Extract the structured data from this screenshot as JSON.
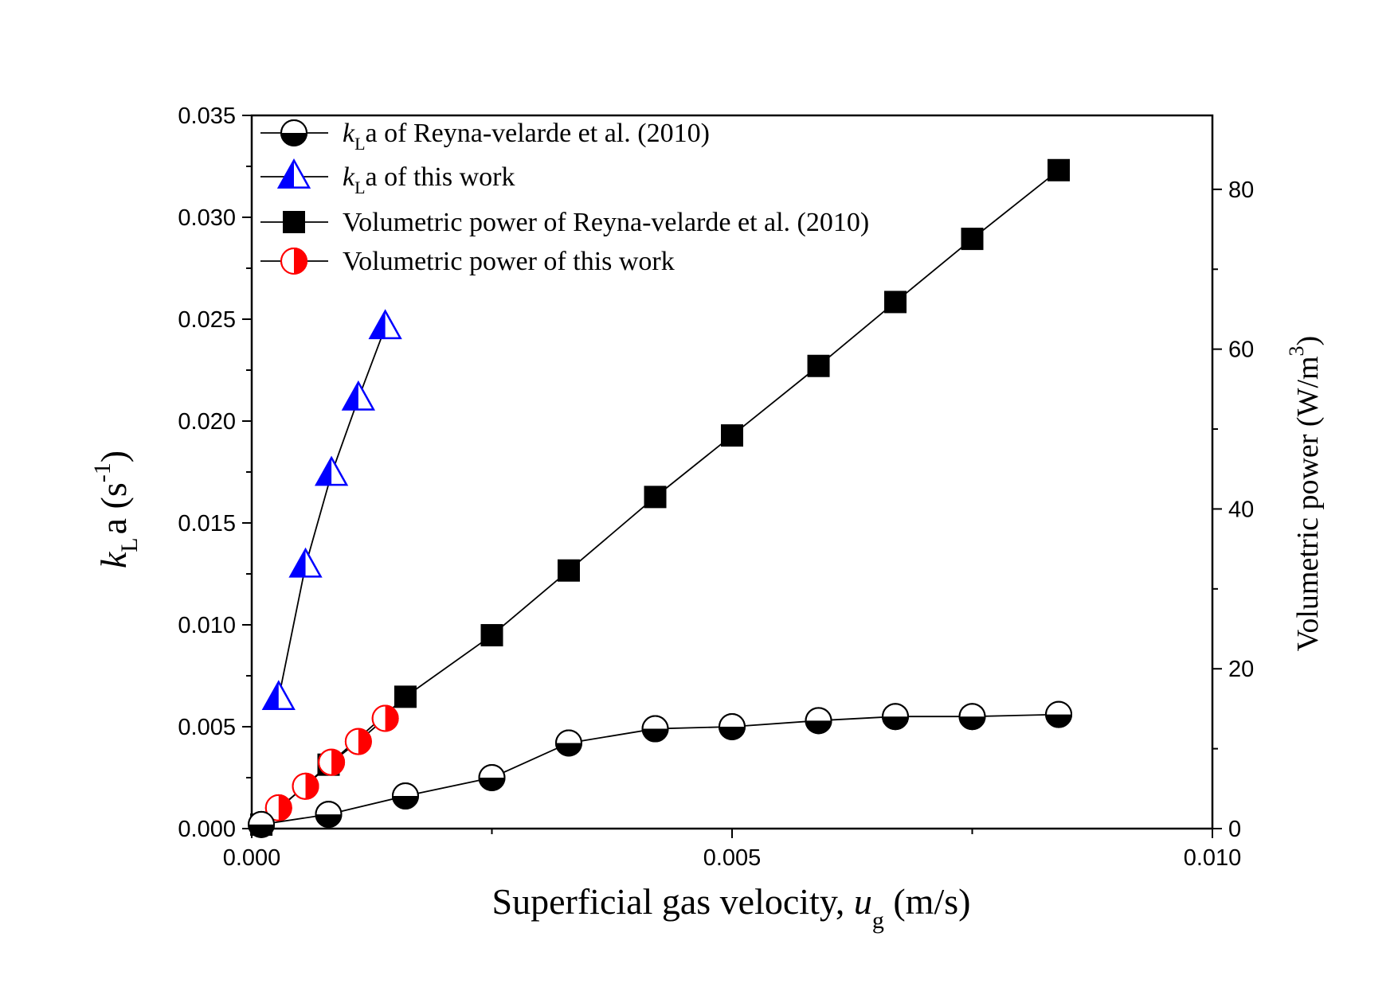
{
  "chart_data": {
    "type": "line",
    "xlabel": {
      "main": "Superficial gas velocity, ",
      "var": "u",
      "sub": "g",
      "unit": " (m/s)"
    },
    "ylabel_left": {
      "var": "k",
      "sub": "L",
      "main": "a (s",
      "sup": "-1",
      "end": ")"
    },
    "ylabel_right": {
      "main": "Volumetric power (W/m",
      "sup": "3",
      "end": ")"
    },
    "x_range": [
      0.0,
      0.01
    ],
    "y_left_range": [
      0.0,
      0.035
    ],
    "y_right_range": [
      0,
      89.25
    ],
    "x_ticks": [
      "0.000",
      "0.005",
      "0.010"
    ],
    "x_tick_values": [
      0.0,
      0.005,
      0.01
    ],
    "y_left_ticks": [
      "0.000",
      "0.005",
      "0.010",
      "0.015",
      "0.020",
      "0.025",
      "0.030",
      "0.035"
    ],
    "y_left_tick_values": [
      0.0,
      0.005,
      0.01,
      0.015,
      0.02,
      0.025,
      0.03,
      0.035
    ],
    "y_right_ticks": [
      "0",
      "20",
      "40",
      "60",
      "80"
    ],
    "y_right_tick_values": [
      0,
      20,
      40,
      60,
      80
    ],
    "legend_position": "top-left",
    "legend": [
      {
        "var": "k",
        "sub": "L",
        "text": "a of Reyna-velarde et al. (2010)"
      },
      {
        "var": "k",
        "sub": "L",
        "text": "a of this work"
      },
      {
        "var": "",
        "sub": "",
        "text": "Volumetric power of Reyna-velarde et al. (2010)"
      },
      {
        "var": "",
        "sub": "",
        "text": "Volumetric power of this work"
      }
    ],
    "series": [
      {
        "axis": "left",
        "marker": "circle-half-bottom",
        "color": "#000000",
        "x": [
          0.0001,
          0.0008,
          0.0016,
          0.0025,
          0.0033,
          0.0042,
          0.005,
          0.0059,
          0.0067,
          0.0075,
          0.0084
        ],
        "y": [
          0.0002,
          0.0007,
          0.0016,
          0.0025,
          0.0042,
          0.0049,
          0.005,
          0.0053,
          0.0055,
          0.0055,
          0.0056
        ]
      },
      {
        "axis": "left",
        "marker": "triangle-half-left",
        "color": "#0000ff",
        "x": [
          0.00028,
          0.00056,
          0.00083,
          0.00111,
          0.00139
        ],
        "y": [
          0.0064,
          0.0129,
          0.0174,
          0.0211,
          0.0246
        ]
      },
      {
        "axis": "right",
        "marker": "square",
        "color": "#000000",
        "x": [
          0.0001,
          0.0008,
          0.0016,
          0.0025,
          0.0033,
          0.0042,
          0.005,
          0.0059,
          0.0067,
          0.0075,
          0.0084
        ],
        "y": [
          0.5,
          8.0,
          16.5,
          24.2,
          32.3,
          41.5,
          49.2,
          57.9,
          65.9,
          73.8,
          82.4
        ]
      },
      {
        "axis": "right",
        "marker": "circle-half-right",
        "color": "#ff0000",
        "x": [
          0.00028,
          0.00056,
          0.00083,
          0.00111,
          0.00139
        ],
        "y": [
          2.6,
          5.3,
          8.3,
          10.9,
          13.8
        ]
      }
    ]
  }
}
